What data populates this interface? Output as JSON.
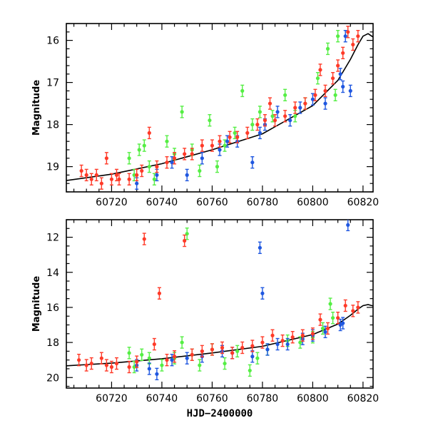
{
  "chart_data": [
    {
      "type": "scatter",
      "title": "",
      "xlabel": "",
      "ylabel": "Magnitude",
      "xlim": [
        60702,
        60824
      ],
      "ylim": [
        19.6,
        15.6
      ],
      "y_inverted": true,
      "xticks": [
        "60720",
        "60740",
        "60760",
        "60780",
        "60800",
        "60820"
      ],
      "yticks": [
        "16",
        "17",
        "18",
        "19"
      ],
      "colors": {
        "green": "#55ee44",
        "blue": "#1f57e0",
        "red": "#ff3a28",
        "model": "#000000"
      },
      "series": [
        {
          "color": "green",
          "marker": "point-with-errorbar",
          "points": [
            [
              60727,
              18.8
            ],
            [
              60729,
              19.2
            ],
            [
              60731,
              18.6
            ],
            [
              60733,
              18.5
            ],
            [
              60735,
              19.0
            ],
            [
              60737,
              19.3
            ],
            [
              60742,
              18.4
            ],
            [
              60745,
              18.7
            ],
            [
              60748,
              17.7
            ],
            [
              60752,
              18.6
            ],
            [
              60755,
              19.1
            ],
            [
              60759,
              17.9
            ],
            [
              60762,
              19.0
            ],
            [
              60765,
              18.5
            ],
            [
              60769,
              18.2
            ],
            [
              60772,
              17.2
            ],
            [
              60776,
              18.0
            ],
            [
              60779,
              17.7
            ],
            [
              60784,
              17.8
            ],
            [
              60789,
              17.3
            ],
            [
              60793,
              17.8
            ],
            [
              60797,
              17.5
            ],
            [
              60802,
              16.9
            ],
            [
              60806,
              16.2
            ],
            [
              60809,
              17.3
            ],
            [
              60810,
              15.9
            ]
          ]
        },
        {
          "color": "blue",
          "marker": "point-with-errorbar",
          "points": [
            [
              60730,
              19.4
            ],
            [
              60738,
              19.2
            ],
            [
              60744,
              18.9
            ],
            [
              60750,
              19.2
            ],
            [
              60756,
              18.8
            ],
            [
              60763,
              18.6
            ],
            [
              60766,
              18.4
            ],
            [
              60770,
              18.4
            ],
            [
              60776,
              18.9
            ],
            [
              60779,
              18.2
            ],
            [
              60781,
              18.0
            ],
            [
              60786,
              17.7
            ],
            [
              60791,
              17.9
            ],
            [
              60795,
              17.6
            ],
            [
              60800,
              17.4
            ],
            [
              60805,
              17.5
            ],
            [
              60811,
              16.8
            ],
            [
              60812,
              17.1
            ],
            [
              60813,
              15.9
            ],
            [
              60815,
              17.2
            ]
          ]
        },
        {
          "color": "red",
          "marker": "point-with-errorbar",
          "points": [
            [
              60708,
              19.1
            ],
            [
              60710,
              19.2
            ],
            [
              60712,
              19.3
            ],
            [
              60714,
              19.2
            ],
            [
              60716,
              19.4
            ],
            [
              60718,
              18.8
            ],
            [
              60720,
              19.3
            ],
            [
              60722,
              19.2
            ],
            [
              60723,
              19.3
            ],
            [
              60727,
              19.3
            ],
            [
              60730,
              19.2
            ],
            [
              60732,
              19.1
            ],
            [
              60735,
              18.2
            ],
            [
              60738,
              19.0
            ],
            [
              60742,
              18.9
            ],
            [
              60745,
              18.8
            ],
            [
              60749,
              18.7
            ],
            [
              60752,
              18.7
            ],
            [
              60756,
              18.5
            ],
            [
              60760,
              18.5
            ],
            [
              60763,
              18.4
            ],
            [
              60767,
              18.3
            ],
            [
              60770,
              18.3
            ],
            [
              60774,
              18.2
            ],
            [
              60778,
              18.0
            ],
            [
              60781,
              17.9
            ],
            [
              60783,
              17.5
            ],
            [
              60785,
              17.9
            ],
            [
              60789,
              17.8
            ],
            [
              60793,
              17.6
            ],
            [
              60797,
              17.5
            ],
            [
              60801,
              17.3
            ],
            [
              60803,
              16.7
            ],
            [
              60805,
              17.2
            ],
            [
              60808,
              16.9
            ],
            [
              60810,
              16.6
            ],
            [
              60812,
              16.3
            ],
            [
              60814,
              15.8
            ],
            [
              60816,
              16.1
            ],
            [
              60818,
              15.9
            ]
          ]
        }
      ],
      "model_curve": {
        "x": [
          60702,
          60720,
          60740,
          60760,
          60780,
          60800,
          60810,
          60815,
          60818,
          60820,
          60822,
          60824
        ],
        "y": [
          19.33,
          19.18,
          18.93,
          18.6,
          18.22,
          17.55,
          16.95,
          16.45,
          16.1,
          15.9,
          15.84,
          15.92
        ]
      }
    },
    {
      "type": "scatter",
      "title": "",
      "xlabel": "HJD−2400000",
      "ylabel": "Magnitude",
      "xlim": [
        60702,
        60824
      ],
      "ylim": [
        20.6,
        11.0
      ],
      "y_inverted": true,
      "xticks": [
        "60720",
        "60740",
        "60760",
        "60780",
        "60800",
        "60820"
      ],
      "yticks": [
        "12",
        "14",
        "16",
        "18",
        "20"
      ],
      "colors": {
        "green": "#55ee44",
        "blue": "#1f57e0",
        "red": "#ff3a28",
        "model": "#000000"
      },
      "series": [
        {
          "color": "green",
          "marker": "point-with-errorbar",
          "points": [
            [
              60727,
              18.6
            ],
            [
              60729,
              19.4
            ],
            [
              60732,
              18.7
            ],
            [
              60735,
              18.9
            ],
            [
              60740,
              19.3
            ],
            [
              60745,
              18.9
            ],
            [
              60748,
              18.0
            ],
            [
              60750,
              11.8
            ],
            [
              60752,
              18.7
            ],
            [
              60755,
              19.3
            ],
            [
              60760,
              18.4
            ],
            [
              60765,
              19.2
            ],
            [
              60770,
              18.5
            ],
            [
              60775,
              19.6
            ],
            [
              60778,
              18.9
            ],
            [
              60782,
              18.4
            ],
            [
              60790,
              17.9
            ],
            [
              60795,
              18.0
            ],
            [
              60800,
              17.7
            ],
            [
              60804,
              17.2
            ],
            [
              60807,
              15.8
            ],
            [
              60808,
              16.6
            ]
          ]
        },
        {
          "color": "blue",
          "marker": "point-with-errorbar",
          "points": [
            [
              60730,
              19.3
            ],
            [
              60735,
              19.5
            ],
            [
              60738,
              19.8
            ],
            [
              60744,
              19.0
            ],
            [
              60750,
              18.9
            ],
            [
              60756,
              18.8
            ],
            [
              60764,
              18.5
            ],
            [
              60768,
              18.6
            ],
            [
              60776,
              18.8
            ],
            [
              60779,
              12.6
            ],
            [
              60780,
              15.2
            ],
            [
              60782,
              18.4
            ],
            [
              60786,
              18.1
            ],
            [
              60790,
              18.1
            ],
            [
              60796,
              17.8
            ],
            [
              60800,
              17.6
            ],
            [
              60805,
              17.4
            ],
            [
              60811,
              17.0
            ],
            [
              60812,
              16.9
            ],
            [
              60814,
              11.3
            ]
          ]
        },
        {
          "color": "red",
          "marker": "point-with-errorbar",
          "points": [
            [
              60707,
              19.0
            ],
            [
              60710,
              19.3
            ],
            [
              60712,
              19.2
            ],
            [
              60716,
              18.9
            ],
            [
              60718,
              19.3
            ],
            [
              60720,
              19.4
            ],
            [
              60722,
              19.2
            ],
            [
              60727,
              19.4
            ],
            [
              60730,
              19.1
            ],
            [
              60733,
              12.1
            ],
            [
              60737,
              18.1
            ],
            [
              60739,
              15.2
            ],
            [
              60742,
              19.0
            ],
            [
              60745,
              18.8
            ],
            [
              60749,
              12.2
            ],
            [
              60752,
              18.7
            ],
            [
              60756,
              18.5
            ],
            [
              60760,
              18.4
            ],
            [
              60764,
              18.3
            ],
            [
              60768,
              18.6
            ],
            [
              60772,
              18.3
            ],
            [
              60776,
              18.2
            ],
            [
              60780,
              18.0
            ],
            [
              60784,
              17.6
            ],
            [
              60788,
              17.9
            ],
            [
              60792,
              17.7
            ],
            [
              60796,
              17.6
            ],
            [
              60800,
              17.5
            ],
            [
              60803,
              16.7
            ],
            [
              60806,
              17.2
            ],
            [
              60810,
              16.6
            ],
            [
              60813,
              15.9
            ],
            [
              60816,
              16.2
            ],
            [
              60818,
              16.0
            ]
          ]
        }
      ],
      "model_curve": {
        "x": [
          60702,
          60720,
          60740,
          60760,
          60780,
          60800,
          60810,
          60815,
          60818,
          60820,
          60822,
          60824
        ],
        "y": [
          19.33,
          19.18,
          18.93,
          18.6,
          18.22,
          17.55,
          16.95,
          16.45,
          16.1,
          15.9,
          15.84,
          15.92
        ]
      }
    }
  ]
}
